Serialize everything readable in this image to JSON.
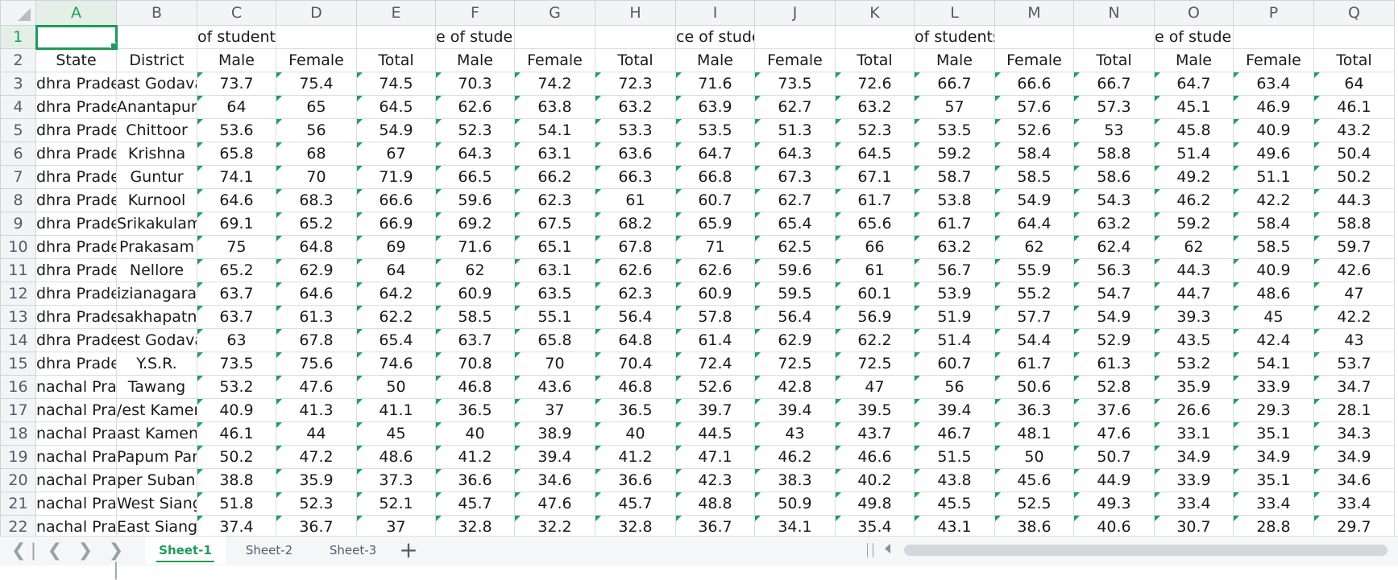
{
  "columns": [
    "A",
    "B",
    "C",
    "D",
    "E",
    "F",
    "G",
    "H",
    "I",
    "J",
    "K",
    "L",
    "M",
    "N",
    "O",
    "P",
    "Q"
  ],
  "active_cell": "A1",
  "header_text": {
    "C": "of students by learning outcome",
    "F": "e of students by learning outcome",
    "I": "ce of students by learning outcor",
    "L": "of students by learning outcome",
    "O": "e of students by learning outcom"
  },
  "row2": [
    "State",
    "District",
    "Male",
    "Female",
    "Total",
    "Male",
    "Female",
    "Total",
    "Male",
    "Female",
    "Total",
    "Male",
    "Female",
    "Total",
    "Male",
    "Female",
    "Total"
  ],
  "rows": [
    {
      "num": "3",
      "state": "dhra Prade",
      "district": "ast Godava",
      "values": [
        "73.7",
        "75.4",
        "74.5",
        "70.3",
        "74.2",
        "72.3",
        "71.6",
        "73.5",
        "72.6",
        "66.7",
        "66.6",
        "66.7",
        "64.7",
        "63.4",
        "64"
      ]
    },
    {
      "num": "4",
      "state": "dhra Prade",
      "district": "Anantapur",
      "values": [
        "64",
        "65",
        "64.5",
        "62.6",
        "63.8",
        "63.2",
        "63.9",
        "62.7",
        "63.2",
        "57",
        "57.6",
        "57.3",
        "45.1",
        "46.9",
        "46.1"
      ]
    },
    {
      "num": "5",
      "state": "dhra Prade",
      "district": "Chittoor",
      "values": [
        "53.6",
        "56",
        "54.9",
        "52.3",
        "54.1",
        "53.3",
        "53.5",
        "51.3",
        "52.3",
        "53.5",
        "52.6",
        "53",
        "45.8",
        "40.9",
        "43.2"
      ]
    },
    {
      "num": "6",
      "state": "dhra Prade",
      "district": "Krishna",
      "values": [
        "65.8",
        "68",
        "67",
        "64.3",
        "63.1",
        "63.6",
        "64.7",
        "64.3",
        "64.5",
        "59.2",
        "58.4",
        "58.8",
        "51.4",
        "49.6",
        "50.4"
      ]
    },
    {
      "num": "7",
      "state": "dhra Prade",
      "district": "Guntur",
      "values": [
        "74.1",
        "70",
        "71.9",
        "66.5",
        "66.2",
        "66.3",
        "66.8",
        "67.3",
        "67.1",
        "58.7",
        "58.5",
        "58.6",
        "49.2",
        "51.1",
        "50.2"
      ]
    },
    {
      "num": "8",
      "state": "dhra Prade",
      "district": "Kurnool",
      "values": [
        "64.6",
        "68.3",
        "66.6",
        "59.6",
        "62.3",
        "61",
        "60.7",
        "62.7",
        "61.7",
        "53.8",
        "54.9",
        "54.3",
        "46.2",
        "42.2",
        "44.3"
      ]
    },
    {
      "num": "9",
      "state": "dhra Prade",
      "district": "Srikakulam",
      "values": [
        "69.1",
        "65.2",
        "66.9",
        "69.2",
        "67.5",
        "68.2",
        "65.9",
        "65.4",
        "65.6",
        "61.7",
        "64.4",
        "63.2",
        "59.2",
        "58.4",
        "58.8"
      ]
    },
    {
      "num": "10",
      "state": "dhra Prade",
      "district": "Prakasam",
      "values": [
        "75",
        "64.8",
        "69",
        "71.6",
        "65.1",
        "67.8",
        "71",
        "62.5",
        "66",
        "63.2",
        "62",
        "62.4",
        "62",
        "58.5",
        "59.7"
      ]
    },
    {
      "num": "11",
      "state": "dhra Prade",
      "district": "Nellore",
      "values": [
        "65.2",
        "62.9",
        "64",
        "62",
        "63.1",
        "62.6",
        "62.6",
        "59.6",
        "61",
        "56.7",
        "55.9",
        "56.3",
        "44.3",
        "40.9",
        "42.6"
      ]
    },
    {
      "num": "12",
      "state": "dhra Prade",
      "district": "izianagarar",
      "values": [
        "63.7",
        "64.6",
        "64.2",
        "60.9",
        "63.5",
        "62.3",
        "60.9",
        "59.5",
        "60.1",
        "53.9",
        "55.2",
        "54.7",
        "44.7",
        "48.6",
        "47"
      ]
    },
    {
      "num": "13",
      "state": "dhra Prade",
      "district": "sakhapatna",
      "values": [
        "63.7",
        "61.3",
        "62.2",
        "58.5",
        "55.1",
        "56.4",
        "57.8",
        "56.4",
        "56.9",
        "51.9",
        "57.7",
        "54.9",
        "39.3",
        "45",
        "42.2"
      ]
    },
    {
      "num": "14",
      "state": "dhra Prade",
      "district": "est Godava",
      "values": [
        "63",
        "67.8",
        "65.4",
        "63.7",
        "65.8",
        "64.8",
        "61.4",
        "62.9",
        "62.2",
        "51.4",
        "54.4",
        "52.9",
        "43.5",
        "42.4",
        "43"
      ]
    },
    {
      "num": "15",
      "state": "dhra Prade",
      "district": "Y.S.R.",
      "values": [
        "73.5",
        "75.6",
        "74.6",
        "70.8",
        "70",
        "70.4",
        "72.4",
        "72.5",
        "72.5",
        "60.7",
        "61.7",
        "61.3",
        "53.2",
        "54.1",
        "53.7"
      ]
    },
    {
      "num": "16",
      "state": "nachal Prac",
      "district": "Tawang",
      "values": [
        "53.2",
        "47.6",
        "50",
        "46.8",
        "43.6",
        "46.8",
        "52.6",
        "42.8",
        "47",
        "56",
        "50.6",
        "52.8",
        "35.9",
        "33.9",
        "34.7"
      ]
    },
    {
      "num": "17",
      "state": "nachal Prac",
      "district": "/est Kamer",
      "values": [
        "40.9",
        "41.3",
        "41.1",
        "36.5",
        "37",
        "36.5",
        "39.7",
        "39.4",
        "39.5",
        "39.4",
        "36.3",
        "37.6",
        "26.6",
        "29.3",
        "28.1"
      ]
    },
    {
      "num": "18",
      "state": "nachal Prac",
      "district": "ast Kamen",
      "values": [
        "46.1",
        "44",
        "45",
        "40",
        "38.9",
        "40",
        "44.5",
        "43",
        "43.7",
        "46.7",
        "48.1",
        "47.6",
        "33.1",
        "35.1",
        "34.3"
      ]
    },
    {
      "num": "19",
      "state": "nachal Prac",
      "district": "Papum Pare",
      "values": [
        "50.2",
        "47.2",
        "48.6",
        "41.2",
        "39.4",
        "41.2",
        "47.1",
        "46.2",
        "46.6",
        "51.5",
        "50",
        "50.7",
        "34.9",
        "34.9",
        "34.9"
      ]
    },
    {
      "num": "20",
      "state": "nachal Prac",
      "district": "per Suban:",
      "values": [
        "38.8",
        "35.9",
        "37.3",
        "36.6",
        "34.6",
        "36.6",
        "42.3",
        "38.3",
        "40.2",
        "43.8",
        "45.6",
        "44.9",
        "33.9",
        "35.1",
        "34.6"
      ]
    },
    {
      "num": "21",
      "state": "nachal Prac",
      "district": "West Siang",
      "values": [
        "51.8",
        "52.3",
        "52.1",
        "45.7",
        "47.6",
        "45.7",
        "48.8",
        "50.9",
        "49.8",
        "45.5",
        "52.5",
        "49.3",
        "33.4",
        "33.4",
        "33.4"
      ]
    },
    {
      "num": "22",
      "state": "nachal Prac",
      "district": "East Siang",
      "values": [
        "37.4",
        "36.7",
        "37",
        "32.8",
        "32.2",
        "32.8",
        "36.7",
        "34.1",
        "35.4",
        "43.1",
        "38.6",
        "40.6",
        "30.7",
        "28.8",
        "29.7"
      ]
    }
  ],
  "tabs": [
    {
      "label": "Sheet-1",
      "active": true
    },
    {
      "label": "Sheet-2",
      "active": false
    },
    {
      "label": "Sheet-3",
      "active": false
    }
  ],
  "icons": {
    "first_sheet": "first-sheet-icon",
    "prev_sheet": "prev-sheet-icon",
    "next_sheet": "next-sheet-icon",
    "last_sheet": "last-sheet-icon",
    "add_sheet": "plus-icon"
  },
  "colors": {
    "accent": "#1e9b57",
    "grid": "#d9dde3",
    "header_bg": "#f3f4f6"
  }
}
